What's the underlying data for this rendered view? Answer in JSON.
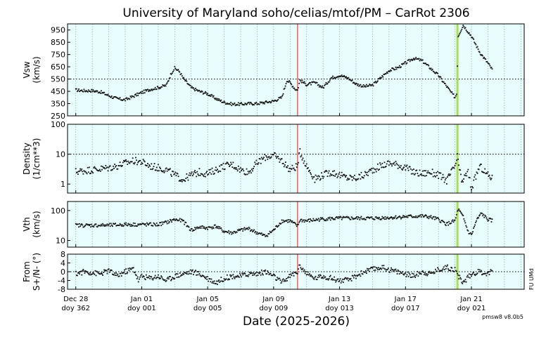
{
  "title": "University of Maryland  soho/celias/mtof/PM – CarRot 2306",
  "xlabel": "Date (2025-2026)",
  "version_label": "pmsw8 v8.0b5",
  "side_label": "FU UMd",
  "chart_data": {
    "type": "scatter",
    "x_unit": "days since 2025-12-28",
    "xlim": [
      -0.5,
      27.2
    ],
    "x_ticks": [
      {
        "x": 0,
        "date": "Dec 28",
        "doy": "doy 362"
      },
      {
        "x": 4,
        "date": "Jan 01",
        "doy": "doy 001"
      },
      {
        "x": 8,
        "date": "Jan 05",
        "doy": "doy 005"
      },
      {
        "x": 12,
        "date": "Jan 09",
        "doy": "doy 009"
      },
      {
        "x": 16,
        "date": "Jan 13",
        "doy": "doy 013"
      },
      {
        "x": 20,
        "date": "Jan 17",
        "doy": "doy 017"
      },
      {
        "x": 24,
        "date": "Jan 21",
        "doy": "doy 021"
      }
    ],
    "markers": [
      {
        "x": 13.45,
        "color": "#ff5a5a"
      },
      {
        "x": 23.15,
        "color": "#a8e04a"
      }
    ],
    "panels": [
      {
        "ylabel": [
          "Vsw",
          "(km/s)"
        ],
        "scale": "linear",
        "ylim": [
          250,
          1000
        ],
        "yticks": [
          "950",
          "850",
          "750",
          "650",
          "550",
          "450",
          "350",
          "250"
        ],
        "reference_line": 550,
        "points": [
          [
            0,
            460
          ],
          [
            0.5,
            455
          ],
          [
            1,
            455
          ],
          [
            1.5,
            445
          ],
          [
            2,
            415
          ],
          [
            2.5,
            390
          ],
          [
            3,
            380
          ],
          [
            3.5,
            410
          ],
          [
            4,
            440
          ],
          [
            4.5,
            465
          ],
          [
            5,
            480
          ],
          [
            5.5,
            500
          ],
          [
            5.8,
            600
          ],
          [
            6,
            640
          ],
          [
            6.3,
            610
          ],
          [
            6.5,
            560
          ],
          [
            7,
            480
          ],
          [
            7.5,
            450
          ],
          [
            8,
            430
          ],
          [
            8.5,
            390
          ],
          [
            9,
            360
          ],
          [
            9.5,
            345
          ],
          [
            10,
            345
          ],
          [
            10.5,
            350
          ],
          [
            11,
            350
          ],
          [
            11.5,
            360
          ],
          [
            12,
            370
          ],
          [
            12.5,
            400
          ],
          [
            12.8,
            540
          ],
          [
            13,
            520
          ],
          [
            13.3,
            470
          ],
          [
            13.45,
            460
          ],
          [
            13.6,
            540
          ],
          [
            14,
            505
          ],
          [
            14.5,
            520
          ],
          [
            15,
            480
          ],
          [
            15.5,
            560
          ],
          [
            16,
            580
          ],
          [
            16.5,
            560
          ],
          [
            17,
            510
          ],
          [
            17.5,
            490
          ],
          [
            18,
            500
          ],
          [
            18.5,
            560
          ],
          [
            19,
            620
          ],
          [
            19.5,
            640
          ],
          [
            20,
            680
          ],
          [
            20.5,
            720
          ],
          [
            21,
            700
          ],
          [
            21.5,
            640
          ],
          [
            22,
            580
          ],
          [
            22.5,
            490
          ],
          [
            23,
            400
          ],
          [
            23.1,
            430
          ],
          [
            23.2,
            900
          ],
          [
            23.5,
            990
          ],
          [
            24,
            900
          ],
          [
            24.5,
            770
          ],
          [
            25,
            680
          ],
          [
            25.3,
            620
          ]
        ]
      },
      {
        "ylabel": [
          "Density",
          "(1/cm**3)"
        ],
        "scale": "log",
        "ylim": [
          0.5,
          100
        ],
        "yticks": [
          "100",
          "10",
          "1"
        ],
        "reference_line": 10,
        "points": [
          [
            0,
            2.6
          ],
          [
            0.5,
            2.8
          ],
          [
            1,
            3.0
          ],
          [
            1.5,
            3.2
          ],
          [
            2,
            3.5
          ],
          [
            2.5,
            4.0
          ],
          [
            3,
            5.0
          ],
          [
            3.5,
            6.0
          ],
          [
            4,
            5.5
          ],
          [
            4.5,
            4.0
          ],
          [
            5,
            3.5
          ],
          [
            5.5,
            3.0
          ],
          [
            6,
            2.0
          ],
          [
            6.5,
            1.4
          ],
          [
            7,
            2.0
          ],
          [
            7.5,
            2.5
          ],
          [
            8,
            2.2
          ],
          [
            8.5,
            3.0
          ],
          [
            9,
            4.0
          ],
          [
            9.5,
            4.5
          ],
          [
            10,
            3.0
          ],
          [
            10.5,
            2.5
          ],
          [
            11,
            5.0
          ],
          [
            11.5,
            8.0
          ],
          [
            12,
            9.0
          ],
          [
            12.5,
            6.0
          ],
          [
            13,
            3.0
          ],
          [
            13.45,
            4.0
          ],
          [
            13.6,
            12.0
          ],
          [
            14,
            4.0
          ],
          [
            14.5,
            1.5
          ],
          [
            15,
            2.0
          ],
          [
            15.5,
            2.5
          ],
          [
            16,
            2.0
          ],
          [
            16.5,
            1.6
          ],
          [
            17,
            1.6
          ],
          [
            17.5,
            2.0
          ],
          [
            18,
            3.0
          ],
          [
            18.5,
            4.0
          ],
          [
            19,
            5.0
          ],
          [
            19.5,
            4.5
          ],
          [
            20,
            3.5
          ],
          [
            20.5,
            2.5
          ],
          [
            21,
            2.2
          ],
          [
            21.5,
            2.5
          ],
          [
            22,
            2.0
          ],
          [
            22.5,
            1.3
          ],
          [
            23,
            4.0
          ],
          [
            23.15,
            8.0
          ],
          [
            23.4,
            1.2
          ],
          [
            23.8,
            2.5
          ],
          [
            24,
            0.7
          ],
          [
            24.5,
            4.0
          ],
          [
            25,
            2.0
          ],
          [
            25.3,
            1.5
          ]
        ]
      },
      {
        "ylabel": [
          "Vth",
          "(km/s)"
        ],
        "scale": "log",
        "ylim": [
          6,
          200
        ],
        "yticks": [
          "100",
          "10"
        ],
        "reference_line": null,
        "points": [
          [
            0,
            32
          ],
          [
            1,
            32
          ],
          [
            2,
            32
          ],
          [
            3,
            34
          ],
          [
            4,
            34
          ],
          [
            5,
            34
          ],
          [
            5.5,
            40
          ],
          [
            6,
            50
          ],
          [
            6.5,
            45
          ],
          [
            7,
            22
          ],
          [
            7.5,
            28
          ],
          [
            8,
            26
          ],
          [
            8.5,
            30
          ],
          [
            9,
            20
          ],
          [
            9.5,
            18
          ],
          [
            10,
            22
          ],
          [
            10.5,
            25
          ],
          [
            11,
            18
          ],
          [
            11.5,
            14
          ],
          [
            12,
            22
          ],
          [
            12.5,
            45
          ],
          [
            13,
            45
          ],
          [
            13.45,
            30
          ],
          [
            13.6,
            48
          ],
          [
            14,
            45
          ],
          [
            15,
            52
          ],
          [
            16,
            55
          ],
          [
            17,
            55
          ],
          [
            18,
            55
          ],
          [
            19,
            58
          ],
          [
            20,
            62
          ],
          [
            21,
            65
          ],
          [
            21.5,
            60
          ],
          [
            22,
            50
          ],
          [
            22.5,
            35
          ],
          [
            23,
            45
          ],
          [
            23.2,
            110
          ],
          [
            23.5,
            60
          ],
          [
            23.8,
            20
          ],
          [
            24,
            15
          ],
          [
            24.3,
            45
          ],
          [
            24.6,
            80
          ],
          [
            25,
            50
          ],
          [
            25.3,
            45
          ]
        ]
      },
      {
        "ylabel": [
          "From",
          "S+/N- (°)"
        ],
        "scale": "linear",
        "ylim": [
          -8,
          8
        ],
        "yticks": [
          "8",
          "4",
          "0",
          "-4",
          "-8"
        ],
        "reference_line": 0,
        "points": [
          [
            0,
            -1
          ],
          [
            0.5,
            0
          ],
          [
            1,
            -0.5
          ],
          [
            1.5,
            -1
          ],
          [
            2,
            0.5
          ],
          [
            2.5,
            -2
          ],
          [
            3,
            0
          ],
          [
            3.5,
            1.5
          ],
          [
            3.8,
            -4
          ],
          [
            4,
            -2
          ],
          [
            4.5,
            -3
          ],
          [
            5,
            -2
          ],
          [
            5.5,
            -4
          ],
          [
            6,
            -2
          ],
          [
            6.5,
            -1
          ],
          [
            7,
            0
          ],
          [
            7.5,
            -1
          ],
          [
            8,
            -3
          ],
          [
            8.5,
            -5
          ],
          [
            9,
            -3
          ],
          [
            9.5,
            -2
          ],
          [
            10,
            -2
          ],
          [
            10.5,
            -1
          ],
          [
            11,
            -1
          ],
          [
            11.5,
            0
          ],
          [
            12,
            -2
          ],
          [
            12.5,
            -5
          ],
          [
            13,
            -2
          ],
          [
            13.45,
            0
          ],
          [
            13.6,
            3
          ],
          [
            14,
            -1
          ],
          [
            14.5,
            -3
          ],
          [
            15,
            -2
          ],
          [
            15.5,
            -3
          ],
          [
            16,
            -4
          ],
          [
            16.5,
            -4
          ],
          [
            17,
            -2
          ],
          [
            17.5,
            0
          ],
          [
            18,
            1
          ],
          [
            18.5,
            2
          ],
          [
            19,
            1
          ],
          [
            19.5,
            0
          ],
          [
            20,
            -1
          ],
          [
            20.5,
            -2
          ],
          [
            21,
            0
          ],
          [
            21.5,
            -1
          ],
          [
            22,
            1
          ],
          [
            22.5,
            2
          ],
          [
            23,
            1
          ],
          [
            23.2,
            -2
          ],
          [
            23.5,
            -5
          ],
          [
            24,
            -1
          ],
          [
            24.5,
            0
          ],
          [
            25,
            -1
          ],
          [
            25.3,
            1
          ]
        ]
      }
    ]
  }
}
